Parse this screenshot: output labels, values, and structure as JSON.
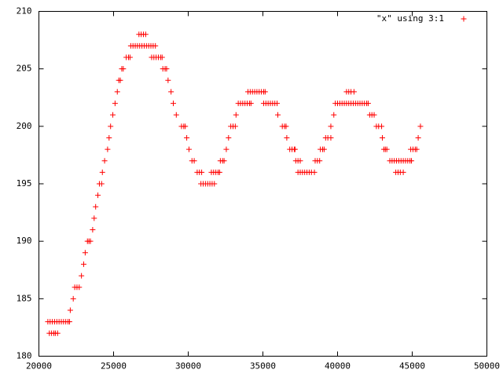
{
  "chart_data": {
    "type": "scatter",
    "xlim": [
      20000,
      50000
    ],
    "xticks": [
      20000,
      25000,
      30000,
      35000,
      40000,
      45000,
      50000
    ],
    "ylim": [
      180,
      210
    ],
    "yticks": [
      180,
      185,
      190,
      195,
      200,
      205,
      210
    ],
    "legend": "top-right",
    "series": [
      {
        "name": "\"x\" using 3:1",
        "color": "#ff0000",
        "x": [
          20700,
          20850,
          21000,
          21100,
          21250,
          20600,
          20750,
          20900,
          21050,
          21200,
          21350,
          21500,
          21650,
          21800,
          21950,
          22050,
          22100,
          22300,
          22400,
          22550,
          22700,
          22850,
          23000,
          23100,
          23250,
          23350,
          23450,
          23600,
          23700,
          23800,
          23950,
          24050,
          24200,
          24250,
          24400,
          24600,
          24700,
          24800,
          24950,
          25100,
          25250,
          25350,
          25450,
          25550,
          25650,
          25850,
          26000,
          26100,
          26150,
          26300,
          26450,
          26600,
          26750,
          26900,
          27050,
          27200,
          27350,
          27500,
          27650,
          27800,
          26700,
          26850,
          27000,
          27150,
          27550,
          27700,
          27850,
          28000,
          28150,
          28250,
          28300,
          28450,
          28550,
          28650,
          28850,
          29000,
          29200,
          29550,
          29700,
          29800,
          29900,
          30050,
          30250,
          30400,
          30600,
          30750,
          30900,
          30850,
          31000,
          31150,
          31300,
          31450,
          31600,
          31750,
          31550,
          31700,
          31850,
          32000,
          32100,
          32150,
          32300,
          32400,
          32550,
          32700,
          32850,
          33000,
          33150,
          33200,
          33350,
          33500,
          33650,
          33800,
          33950,
          34100,
          34200,
          34000,
          34150,
          34300,
          34450,
          34600,
          34750,
          34900,
          35050,
          35150,
          35050,
          35200,
          35350,
          35500,
          35650,
          35800,
          35950,
          36000,
          36300,
          36450,
          36550,
          36600,
          36800,
          36950,
          37100,
          37150,
          37200,
          37350,
          37500,
          37350,
          37500,
          37650,
          37800,
          37950,
          38100,
          38250,
          38450,
          38500,
          38650,
          38800,
          38850,
          39000,
          39100,
          39200,
          39350,
          39550,
          39550,
          39750,
          39850,
          40000,
          40150,
          40300,
          40450,
          40600,
          40750,
          40900,
          41050,
          41200,
          41350,
          41500,
          41650,
          41800,
          41950,
          42050,
          40600,
          40750,
          40900,
          41100,
          42150,
          42300,
          42450,
          42600,
          42750,
          42950,
          43000,
          43100,
          43200,
          43300,
          43500,
          43650,
          43800,
          43950,
          44100,
          44250,
          44400,
          44550,
          44700,
          44850,
          44950,
          43900,
          44050,
          44200,
          44400,
          44900,
          45050,
          45200,
          45300,
          45400,
          45550
        ],
        "values": [
          182,
          182,
          182,
          182,
          182,
          183,
          183,
          183,
          183,
          183,
          183,
          183,
          183,
          183,
          183,
          183,
          184,
          185,
          186,
          186,
          186,
          187,
          188,
          189,
          190,
          190,
          190,
          191,
          192,
          193,
          194,
          195,
          195,
          196,
          197,
          198,
          199,
          200,
          201,
          202,
          203,
          204,
          204,
          205,
          205,
          206,
          206,
          206,
          207,
          207,
          207,
          207,
          207,
          207,
          207,
          207,
          207,
          207,
          207,
          207,
          208,
          208,
          208,
          208,
          206,
          206,
          206,
          206,
          206,
          206,
          205,
          205,
          205,
          204,
          203,
          202,
          201,
          200,
          200,
          200,
          199,
          198,
          197,
          197,
          196,
          196,
          196,
          195,
          195,
          195,
          195,
          195,
          195,
          195,
          196,
          196,
          196,
          196,
          196,
          197,
          197,
          197,
          198,
          199,
          200,
          200,
          200,
          201,
          202,
          202,
          202,
          202,
          202,
          202,
          202,
          203,
          203,
          203,
          203,
          203,
          203,
          203,
          203,
          203,
          202,
          202,
          202,
          202,
          202,
          202,
          202,
          201,
          200,
          200,
          200,
          199,
          198,
          198,
          198,
          198,
          197,
          197,
          197,
          196,
          196,
          196,
          196,
          196,
          196,
          196,
          196,
          197,
          197,
          197,
          198,
          198,
          198,
          199,
          199,
          199,
          200,
          201,
          202,
          202,
          202,
          202,
          202,
          202,
          202,
          202,
          202,
          202,
          202,
          202,
          202,
          202,
          202,
          202,
          203,
          203,
          203,
          203,
          201,
          201,
          201,
          200,
          200,
          200,
          199,
          198,
          198,
          198,
          197,
          197,
          197,
          197,
          197,
          197,
          197,
          197,
          197,
          197,
          197,
          196,
          196,
          196,
          196,
          198,
          198,
          198,
          198,
          199,
          200
        ]
      }
    ]
  }
}
